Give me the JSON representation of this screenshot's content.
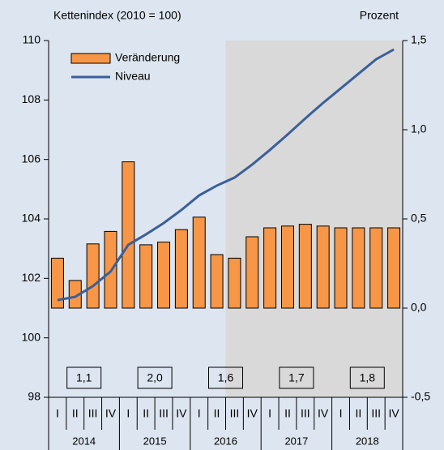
{
  "chart_data": {
    "type": "bar",
    "y_label": "Kettenindex (2010 = 100)",
    "y2_label": "Prozent",
    "categories": [
      "I",
      "II",
      "III",
      "IV",
      "I",
      "II",
      "III",
      "IV",
      "I",
      "II",
      "III",
      "IV",
      "I",
      "II",
      "III",
      "IV",
      "I",
      "II",
      "III",
      "IV"
    ],
    "years": [
      "2014",
      "2015",
      "2016",
      "2017",
      "2018"
    ],
    "annual_labels": [
      "1,1",
      "2,0",
      "1,6",
      "1,7",
      "1,8"
    ],
    "series": [
      {
        "name": "Veränderung",
        "type": "bar",
        "axis": "y2",
        "color": "#f79646",
        "values": [
          0.28,
          0.155,
          0.36,
          0.43,
          0.82,
          0.355,
          0.37,
          0.44,
          0.51,
          0.3,
          0.28,
          0.4,
          0.45,
          0.46,
          0.47,
          0.46,
          0.45,
          0.45,
          0.45,
          0.45
        ]
      },
      {
        "name": "Niveau",
        "type": "line",
        "color": "#3a5f9a",
        "values": [
          101.27,
          101.38,
          101.74,
          102.23,
          103.13,
          103.48,
          103.86,
          104.3,
          104.79,
          105.12,
          105.39,
          105.83,
          106.32,
          106.84,
          107.38,
          107.9,
          108.39,
          108.88,
          109.37,
          109.7
        ]
      }
    ],
    "ylim": [
      98,
      110
    ],
    "yticks": [
      98,
      100,
      102,
      104,
      106,
      108,
      110
    ],
    "y2lim": [
      -0.5,
      1.5
    ],
    "y2ticks": [
      {
        "value": -0.5,
        "label": "-0,5"
      },
      {
        "value": 0,
        "label": "0,0"
      },
      {
        "value": 0.5,
        "label": "0,5"
      },
      {
        "value": 1,
        "label": "1,0"
      },
      {
        "value": 1.5,
        "label": "1,5"
      }
    ],
    "legend": "upper left"
  }
}
